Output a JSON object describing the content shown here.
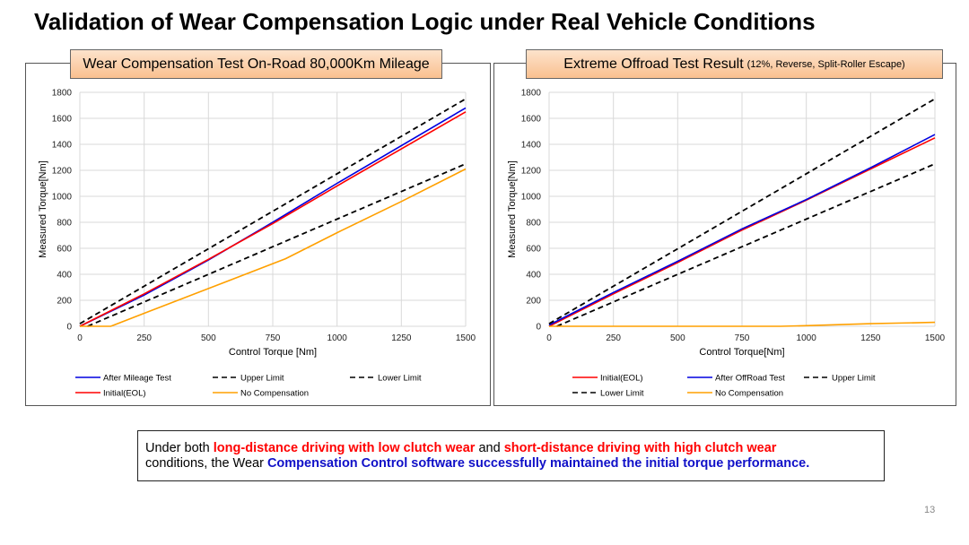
{
  "title": "Validation of Wear Compensation Logic under Real Vehicle Conditions",
  "chart_data": [
    {
      "type": "line",
      "title": "Wear Compensation Test On-Road 80,000Km Mileage",
      "title_note": "",
      "xlabel": "Control Torque [Nm]",
      "ylabel": "Measured Torque[Nm]",
      "xlim": [
        0,
        1500
      ],
      "ylim": [
        0,
        1800
      ],
      "xticks": [
        0,
        250,
        500,
        750,
        1000,
        1250,
        1500
      ],
      "yticks": [
        0,
        200,
        400,
        600,
        800,
        1000,
        1200,
        1400,
        1600,
        1800
      ],
      "grid": true,
      "legend": "bottom",
      "series": [
        {
          "name": "After Mileage Test",
          "color": "#0000e0",
          "dash": false,
          "points": [
            [
              0,
              0
            ],
            [
              250,
              240
            ],
            [
              500,
              510
            ],
            [
              750,
              800
            ],
            [
              1000,
              1100
            ],
            [
              1500,
              1680
            ]
          ]
        },
        {
          "name": "Upper Limit",
          "color": "#000000",
          "dash": true,
          "points": [
            [
              0,
              20
            ],
            [
              1500,
              1750
            ]
          ]
        },
        {
          "name": "Lower Limit",
          "color": "#000000",
          "dash": true,
          "points": [
            [
              30,
              0
            ],
            [
              1500,
              1250
            ]
          ]
        },
        {
          "name": "Initial(EOL)",
          "color": "#ff0000",
          "dash": false,
          "points": [
            [
              0,
              0
            ],
            [
              250,
              250
            ],
            [
              500,
              515
            ],
            [
              750,
              790
            ],
            [
              1000,
              1080
            ],
            [
              1500,
              1650
            ]
          ]
        },
        {
          "name": "No Compensation",
          "color": "#ffa000",
          "dash": false,
          "points": [
            [
              0,
              0
            ],
            [
              120,
              0
            ],
            [
              250,
              100
            ],
            [
              500,
              290
            ],
            [
              800,
              520
            ],
            [
              1000,
              720
            ],
            [
              1250,
              960
            ],
            [
              1500,
              1210
            ]
          ]
        }
      ]
    },
    {
      "type": "line",
      "title": "Extreme Offroad Test Result",
      "title_note": "(12%, Reverse, Split-Roller Escape)",
      "xlabel": "Control Torque[Nm]",
      "ylabel": "Measured Torque[Nm]",
      "xlim": [
        0,
        1500
      ],
      "ylim": [
        0,
        1800
      ],
      "xticks": [
        0,
        250,
        500,
        750,
        1000,
        1250,
        1500
      ],
      "yticks": [
        0,
        200,
        400,
        600,
        800,
        1000,
        1200,
        1400,
        1600,
        1800
      ],
      "grid": true,
      "legend": "bottom",
      "series": [
        {
          "name": "Initial(EOL)",
          "color": "#ff0000",
          "dash": false,
          "points": [
            [
              0,
              0
            ],
            [
              250,
              250
            ],
            [
              500,
              490
            ],
            [
              750,
              740
            ],
            [
              1000,
              970
            ],
            [
              1250,
              1210
            ],
            [
              1500,
              1450
            ]
          ]
        },
        {
          "name": "After OffRoad Test",
          "color": "#0000e0",
          "dash": false,
          "points": [
            [
              0,
              10
            ],
            [
              250,
              260
            ],
            [
              500,
              500
            ],
            [
              750,
              750
            ],
            [
              1000,
              975
            ],
            [
              1250,
              1220
            ],
            [
              1500,
              1475
            ]
          ]
        },
        {
          "name": "Upper Limit",
          "color": "#000000",
          "dash": true,
          "points": [
            [
              0,
              20
            ],
            [
              1500,
              1750
            ]
          ]
        },
        {
          "name": "Lower Limit",
          "color": "#000000",
          "dash": true,
          "points": [
            [
              30,
              0
            ],
            [
              1500,
              1250
            ]
          ]
        },
        {
          "name": "No Compensation",
          "color": "#ffa000",
          "dash": false,
          "points": [
            [
              0,
              0
            ],
            [
              900,
              0
            ],
            [
              1000,
              5
            ],
            [
              1250,
              20
            ],
            [
              1500,
              30
            ]
          ]
        }
      ]
    }
  ],
  "note": {
    "t1": "Under both ",
    "h1": "long-distance driving with low clutch wear",
    "t2": " and ",
    "h2": "short-distance driving with high clutch wear",
    "t3": "conditions, the Wear ",
    "h3": "Compensation Control software successfully maintained the initial torque performance."
  },
  "page_number": "13"
}
